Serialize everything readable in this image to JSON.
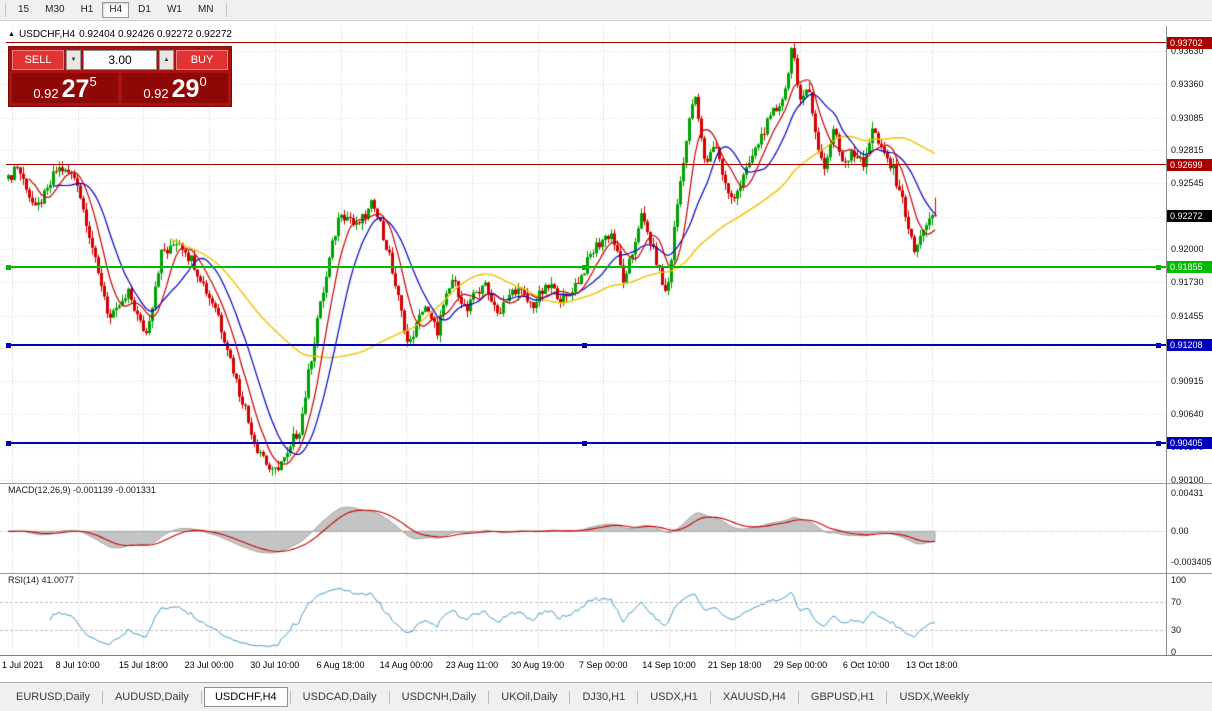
{
  "toolbar": {
    "periods": [
      {
        "label": "15",
        "active": false
      },
      {
        "label": "M30",
        "active": false
      },
      {
        "label": "H1",
        "active": false
      },
      {
        "label": "H4",
        "active": true
      },
      {
        "label": "D1",
        "active": false
      },
      {
        "label": "W1",
        "active": false
      },
      {
        "label": "MN",
        "active": false
      }
    ]
  },
  "chart": {
    "marker": "▲",
    "symbol": "USDCHF,H4",
    "ohlc_text": "0.92404 0.92426 0.92272 0.92272"
  },
  "trade_panel": {
    "sell_label": "SELL",
    "buy_label": "BUY",
    "volume": "3.00",
    "down_glyph": "▼",
    "up_glyph": "▲",
    "bid": {
      "big": "0.92",
      "pips": "27",
      "sup": "5"
    },
    "ask": {
      "big": "0.92",
      "pips": "29",
      "sup": "0"
    }
  },
  "price_axis": {
    "labels": [
      "0.93630",
      "0.93360",
      "0.93085",
      "0.92815",
      "0.92545",
      "0.92270",
      "0.92000",
      "0.91730",
      "0.91455",
      "0.91185",
      "0.90915",
      "0.90640",
      "0.90370",
      "0.90100"
    ]
  },
  "current_price": {
    "label": "0.92272",
    "value": 0.92272
  },
  "hlines": [
    {
      "label": "0.93702",
      "price": 0.93702,
      "color": "#aa0000",
      "thickness": 1,
      "handles": false
    },
    {
      "label": "0.92699",
      "price": 0.92699,
      "color": "#aa0000",
      "thickness": 1,
      "handles": false
    },
    {
      "label": "0.91855",
      "price": 0.91855,
      "color": "#00bb00",
      "thickness": 2,
      "handles": true
    },
    {
      "label": "0.91208",
      "price": 0.91208,
      "color": "#0000bb",
      "thickness": 2,
      "handles": true
    },
    {
      "label": "0.90405",
      "price": 0.90405,
      "color": "#0000bb",
      "thickness": 2,
      "handles": true
    }
  ],
  "indicators": {
    "macd": {
      "label": "MACD(12,26,9) -0.001139 -0.001331",
      "axis": [
        {
          "label": "0.00431",
          "value": 0.00431
        },
        {
          "label": "0.00",
          "value": 0
        },
        {
          "label": "-0.003405",
          "value": -0.003405
        }
      ]
    },
    "rsi": {
      "label": "RSI(14) 41.0077",
      "axis": [
        {
          "label": "100",
          "value": 100
        },
        {
          "label": "70",
          "value": 70
        },
        {
          "label": "30",
          "value": 30
        },
        {
          "label": "0",
          "value": 0
        }
      ],
      "levels": [
        70,
        30
      ]
    }
  },
  "time_axis": {
    "labels": [
      "1 Jul 2021",
      "8 Jul 10:00",
      "15 Jul 18:00",
      "23 Jul 00:00",
      "30 Jul 10:00",
      "6 Aug 18:00",
      "14 Aug 00:00",
      "23 Aug 11:00",
      "30 Aug 19:00",
      "7 Sep 00:00",
      "14 Sep 10:00",
      "21 Sep 18:00",
      "29 Sep 00:00",
      "6 Oct 10:00",
      "13 Oct 18:00"
    ]
  },
  "tabs": [
    {
      "label": "EURUSD,Daily",
      "active": false
    },
    {
      "label": "AUDUSD,Daily",
      "active": false
    },
    {
      "label": "USDCHF,H4",
      "active": true
    },
    {
      "label": "USDCAD,Daily",
      "active": false
    },
    {
      "label": "USDCNH,Daily",
      "active": false
    },
    {
      "label": "UKOil,Daily",
      "active": false
    },
    {
      "label": "DJ30,H1",
      "active": false
    },
    {
      "label": "USDX,H1",
      "active": false
    },
    {
      "label": "XAUUSD,H4",
      "active": false
    },
    {
      "label": "GBPUSD,H1",
      "active": false
    },
    {
      "label": "USDX,Weekly",
      "active": false
    }
  ],
  "chart_data": {
    "type": "candlestick",
    "symbol": "USDCHF",
    "timeframe": "H4",
    "current_ohlc": {
      "open": 0.92404,
      "high": 0.92426,
      "low": 0.92272,
      "close": 0.92272
    },
    "price_axis": {
      "max": 0.9384,
      "min": 0.901
    },
    "candle_count": 310,
    "price_path": [
      [
        0.0,
        0.9258
      ],
      [
        0.01,
        0.927
      ],
      [
        0.03,
        0.9232
      ],
      [
        0.055,
        0.9268
      ],
      [
        0.075,
        0.9255
      ],
      [
        0.095,
        0.9185
      ],
      [
        0.11,
        0.9142
      ],
      [
        0.13,
        0.9165
      ],
      [
        0.148,
        0.9128
      ],
      [
        0.165,
        0.9195
      ],
      [
        0.185,
        0.9208
      ],
      [
        0.205,
        0.918
      ],
      [
        0.225,
        0.915
      ],
      [
        0.248,
        0.9085
      ],
      [
        0.268,
        0.9038
      ],
      [
        0.285,
        0.9016
      ],
      [
        0.3,
        0.903
      ],
      [
        0.315,
        0.9055
      ],
      [
        0.335,
        0.915
      ],
      [
        0.358,
        0.9232
      ],
      [
        0.375,
        0.922
      ],
      [
        0.395,
        0.9238
      ],
      [
        0.415,
        0.918
      ],
      [
        0.432,
        0.9118
      ],
      [
        0.448,
        0.9155
      ],
      [
        0.462,
        0.9132
      ],
      [
        0.478,
        0.9175
      ],
      [
        0.495,
        0.915
      ],
      [
        0.512,
        0.9172
      ],
      [
        0.53,
        0.9148
      ],
      [
        0.548,
        0.917
      ],
      [
        0.565,
        0.9152
      ],
      [
        0.582,
        0.917
      ],
      [
        0.6,
        0.9158
      ],
      [
        0.618,
        0.9178
      ],
      [
        0.635,
        0.9205
      ],
      [
        0.65,
        0.9215
      ],
      [
        0.665,
        0.917
      ],
      [
        0.682,
        0.9228
      ],
      [
        0.695,
        0.92
      ],
      [
        0.71,
        0.9162
      ],
      [
        0.728,
        0.9275
      ],
      [
        0.74,
        0.933
      ],
      [
        0.752,
        0.9268
      ],
      [
        0.762,
        0.929
      ],
      [
        0.778,
        0.924
      ],
      [
        0.79,
        0.9255
      ],
      [
        0.805,
        0.928
      ],
      [
        0.822,
        0.9308
      ],
      [
        0.838,
        0.933
      ],
      [
        0.845,
        0.9368
      ],
      [
        0.853,
        0.9322
      ],
      [
        0.862,
        0.9336
      ],
      [
        0.872,
        0.929
      ],
      [
        0.88,
        0.9266
      ],
      [
        0.89,
        0.9298
      ],
      [
        0.9,
        0.9272
      ],
      [
        0.91,
        0.9282
      ],
      [
        0.922,
        0.9268
      ],
      [
        0.932,
        0.93
      ],
      [
        0.942,
        0.928
      ],
      [
        0.953,
        0.9268
      ],
      [
        0.964,
        0.9242
      ],
      [
        0.977,
        0.9196
      ],
      [
        0.988,
        0.922
      ],
      [
        1.0,
        0.92272
      ]
    ],
    "moving_averages": [
      {
        "name": "fast-ma",
        "period": 8,
        "color": "#cc0000"
      },
      {
        "name": "medium-ma",
        "period": 16,
        "color": "#0000cc"
      },
      {
        "name": "slow-ma",
        "period": 55,
        "color": "#f2c200"
      }
    ],
    "colors": {
      "bull": "#00a000",
      "bear": "#d40000"
    },
    "macd": {
      "fast": 12,
      "slow": 26,
      "signal": 9,
      "main_value": -0.001139,
      "signal_value": -0.001331,
      "vmax": 0.0046,
      "vmin": -0.00385,
      "hist_color": "#c4c4c4",
      "signal_color": "#cc0000"
    },
    "rsi": {
      "period": 14,
      "value": 41.0077,
      "color": "#4aa0cc",
      "vmax": 100,
      "vmin": 0
    }
  }
}
